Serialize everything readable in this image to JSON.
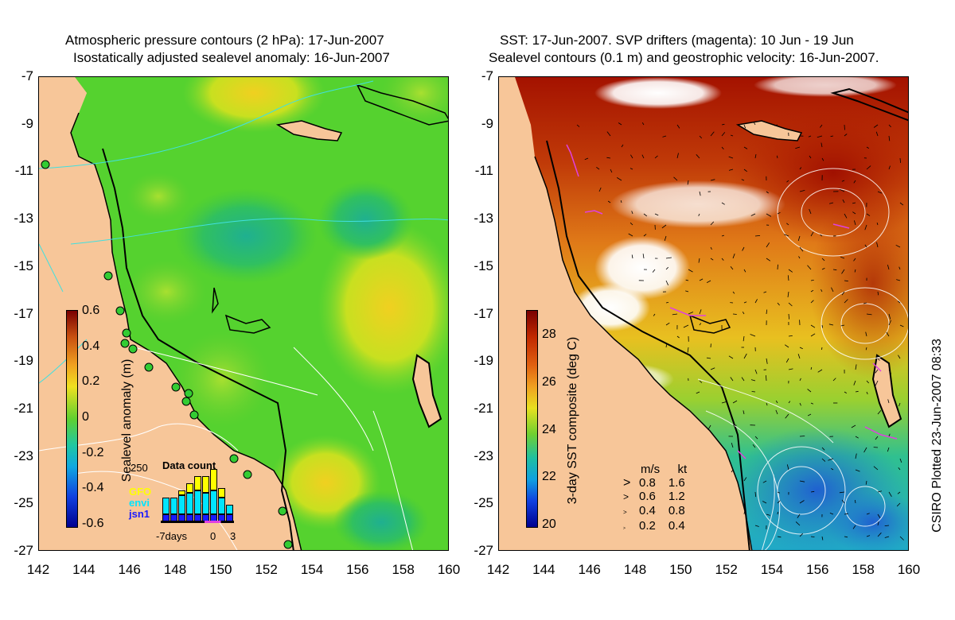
{
  "left_panel": {
    "title_line1": "Atmospheric pressure contours (2 hPa): 17-Jun-2007",
    "title_line2": "Isostatically adjusted sealevel anomaly: 16-Jun-2007",
    "colorbar": {
      "label": "Sealevel anomaly (m)",
      "ticks": [
        "0.6",
        "0.4",
        "0.2",
        "0",
        "-0.2",
        "-0.4",
        "-0.6"
      ]
    },
    "data_count": {
      "title": "Data count",
      "y_tick": "250",
      "legend": [
        {
          "name": "GFO",
          "color": "#ffff00"
        },
        {
          "name": "envi",
          "color": "#00e5ff"
        },
        {
          "name": "jsn1",
          "color": "#1a1aff"
        }
      ],
      "x_label_left": "-7days",
      "x_label_mid": "0",
      "x_label_right": "3"
    }
  },
  "right_panel": {
    "title_line1": "SST: 17-Jun-2007. SVP drifters (magenta): 10 Jun - 19 Jun",
    "title_line2": "Sealevel contours (0.1 m) and geostrophic velocity: 16-Jun-2007.",
    "colorbar": {
      "label": "3-day SST composite (deg C)",
      "ticks": [
        "28",
        "26",
        "24",
        "22",
        "20"
      ]
    },
    "velocity_legend": {
      "header_ms": "m/s",
      "header_kt": "kt",
      "rows": [
        {
          "ms": "0.8",
          "kt": "1.6"
        },
        {
          "ms": "0.6",
          "kt": "1.2"
        },
        {
          "ms": "0.4",
          "kt": "0.8"
        },
        {
          "ms": "0.2",
          "kt": "0.4"
        }
      ]
    }
  },
  "axes": {
    "lat_ticks": [
      "-7",
      "-9",
      "-11",
      "-13",
      "-15",
      "-17",
      "-19",
      "-21",
      "-23",
      "-25",
      "-27"
    ],
    "lon_ticks": [
      "142",
      "144",
      "146",
      "148",
      "150",
      "152",
      "154",
      "156",
      "158",
      "160"
    ]
  },
  "credit": "CSIRO Plotted 23-Jun-2007 08:33",
  "colors": {
    "land": "#f7c699",
    "sla_base": "#55d22f",
    "sst_warm": "#b01a00",
    "sst_mid": "#e8a020",
    "sst_cool": "#20b0b0"
  }
}
